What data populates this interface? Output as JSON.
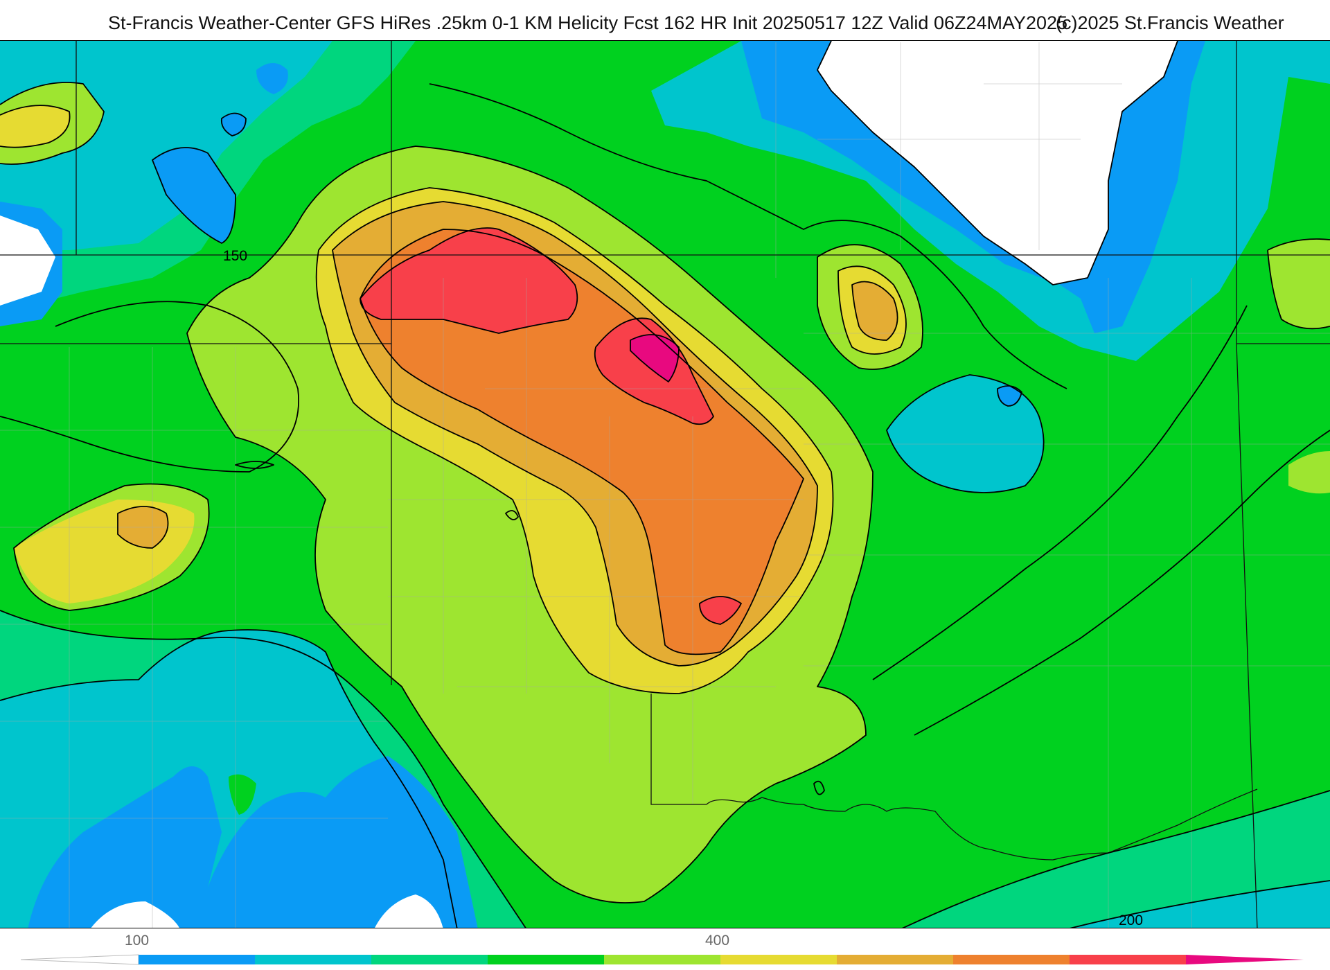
{
  "header": {
    "title": "St-Francis Weather-Center GFS HiRes .25km 0-1 KM Helicity Fcst 162 HR Init 20250517 12Z  Valid 06Z24MAY2025",
    "credit": "(c)2025 St.Francis Weather"
  },
  "map": {
    "field": "0-1 KM Helicity",
    "contour_labels": [
      "150",
      "200"
    ]
  },
  "colorbar": {
    "tick_labels": [
      "100",
      "400"
    ],
    "colors": [
      "#ffffff",
      "#0a9bf5",
      "#00c5cd",
      "#00d67e",
      "#00d11f",
      "#9ee530",
      "#e6db32",
      "#e4ad34",
      "#ee812e",
      "#f8404a",
      "#e8097f"
    ]
  }
}
